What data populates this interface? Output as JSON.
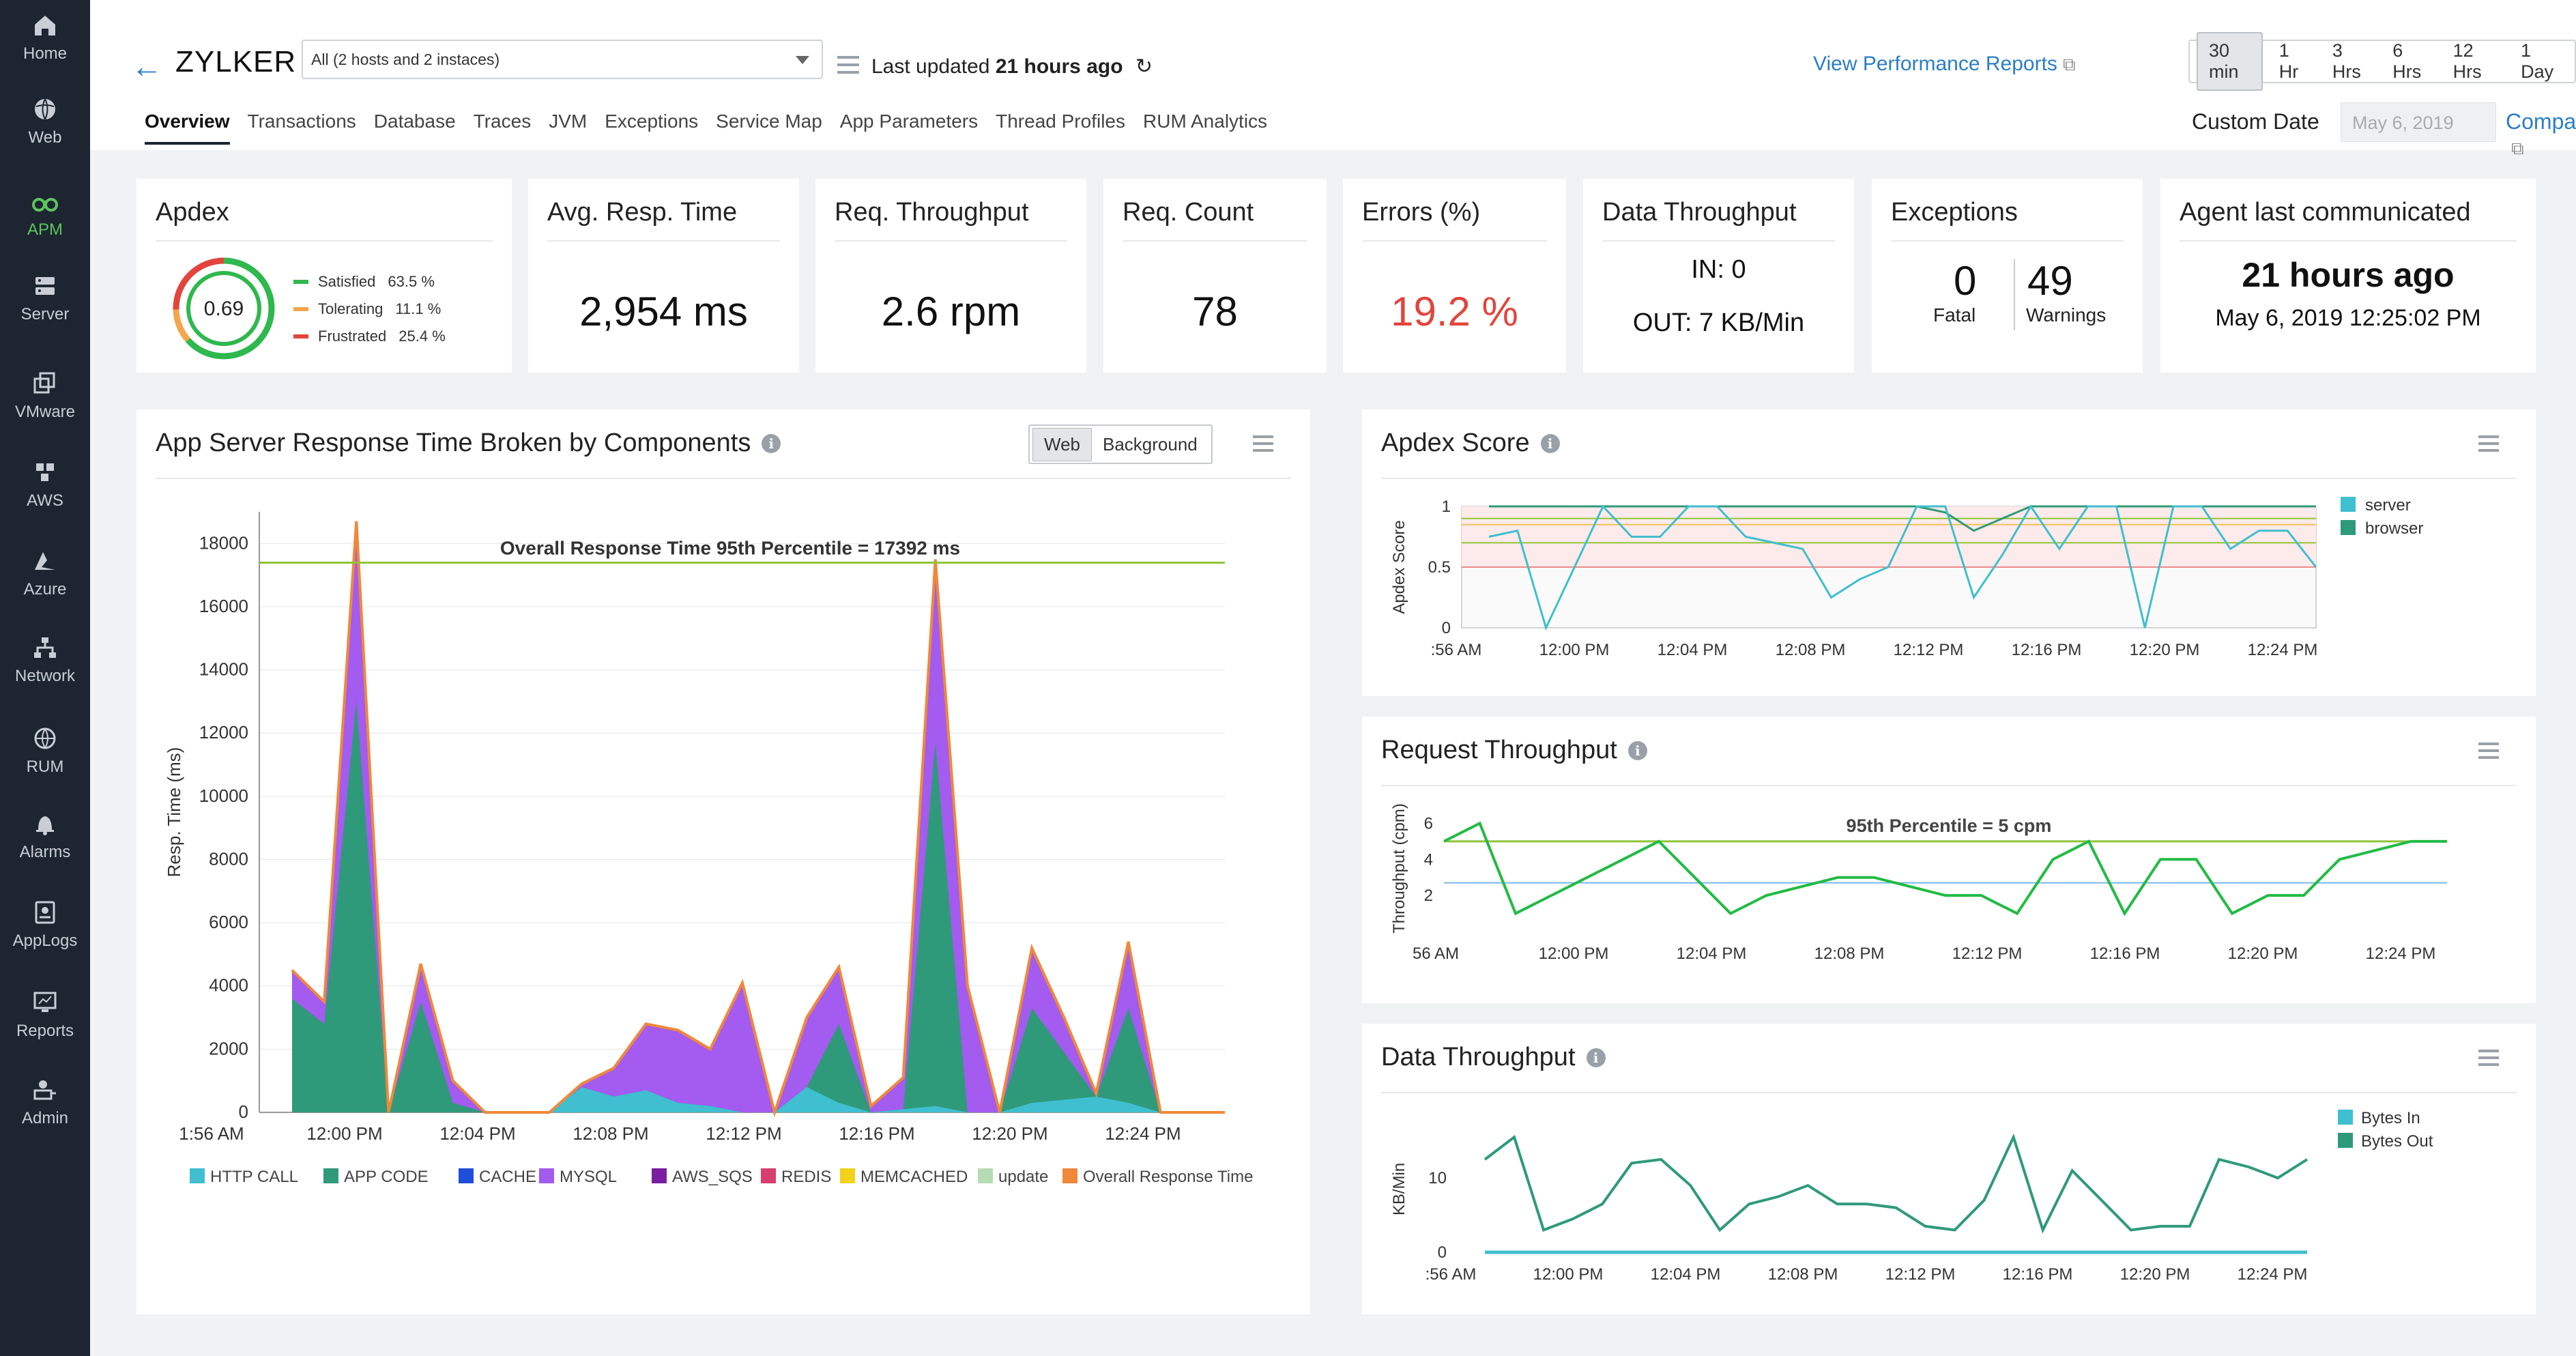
{
  "sidebar": {
    "items": [
      {
        "label": "Home",
        "icon": "home-icon"
      },
      {
        "label": "Web",
        "icon": "globe-icon"
      },
      {
        "label": "APM",
        "icon": "binoculars-icon",
        "active": true
      },
      {
        "label": "Server",
        "icon": "server-icon"
      },
      {
        "label": "VMware",
        "icon": "vmware-icon"
      },
      {
        "label": "AWS",
        "icon": "aws-icon"
      },
      {
        "label": "Azure",
        "icon": "azure-icon"
      },
      {
        "label": "Network",
        "icon": "network-icon"
      },
      {
        "label": "RUM",
        "icon": "rum-globe-icon"
      },
      {
        "label": "Alarms",
        "icon": "bell-icon"
      },
      {
        "label": "AppLogs",
        "icon": "applogs-icon"
      },
      {
        "label": "Reports",
        "icon": "reports-icon"
      },
      {
        "label": "Admin",
        "icon": "admin-icon"
      }
    ]
  },
  "header": {
    "app_name": "ZYLKER",
    "host_select": "All (2 hosts and 2 instaces)",
    "last_updated_prefix": "Last updated",
    "last_updated_value": "21 hours ago",
    "perf_reports": "View Performance Reports",
    "ranges": [
      "30 min",
      "1 Hr",
      "3 Hrs",
      "6 Hrs",
      "12 Hrs",
      "1 Day"
    ],
    "active_range": "30 min",
    "tabs": [
      "Overview",
      "Transactions",
      "Database",
      "Traces",
      "JVM",
      "Exceptions",
      "Service Map",
      "App Parameters",
      "Thread Profiles",
      "RUM Analytics"
    ],
    "active_tab": "Overview",
    "custom_date_label": "Custom Date",
    "custom_date_placeholder": "May 6, 2019",
    "compare": "Compare"
  },
  "metrics": {
    "apdex": {
      "title": "Apdex",
      "score": "0.69",
      "legend": [
        {
          "label": "Satisfied",
          "pct": "63.5 %",
          "color": "#2eb84d"
        },
        {
          "label": "Tolerating",
          "pct": "11.1 %",
          "color": "#f5a54a"
        },
        {
          "label": "Frustrated",
          "pct": "25.4 %",
          "color": "#e3443c"
        }
      ],
      "fractions": [
        0.635,
        0.111,
        0.254
      ]
    },
    "avg_resp": {
      "title": "Avg. Resp. Time",
      "value": "2,954 ms"
    },
    "req_throughput": {
      "title": "Req. Throughput",
      "value": "2.6 rpm"
    },
    "req_count": {
      "title": "Req. Count",
      "value": "78"
    },
    "errors": {
      "title": "Errors (%)",
      "value": "19.2 %"
    },
    "data_throughput": {
      "title": "Data Throughput",
      "in": "IN: 0",
      "out": "OUT: 7 KB/Min"
    },
    "exceptions": {
      "title": "Exceptions",
      "fatal_value": "0",
      "fatal_label": "Fatal",
      "warn_value": "49",
      "warn_label": "Warnings"
    },
    "agent": {
      "title": "Agent last communicated",
      "relative": "21 hours ago",
      "absolute": "May 6, 2019 12:25:02 PM"
    }
  },
  "panels": {
    "resp_components": {
      "title": "App Server Response Time Broken by Components",
      "toggle": [
        "Web",
        "Background"
      ]
    },
    "apdex_score": {
      "title": "Apdex Score"
    },
    "request_throughput": {
      "title": "Request Throughput"
    },
    "data_throughput": {
      "title": "Data Throughput"
    }
  },
  "colors": {
    "accent": "#2a7ec8",
    "sidebar": "#1c2530",
    "error": "#e3443c"
  },
  "chart_data": [
    {
      "type": "area",
      "title": "App Server Response Time Broken by Components",
      "ylabel": "Resp. Time (ms)",
      "ylim": [
        0,
        19000
      ],
      "y_ticks": [
        0,
        2000,
        4000,
        6000,
        8000,
        10000,
        12000,
        14000,
        16000,
        18000
      ],
      "x_ticks": [
        "1:56 AM",
        "12:00 PM",
        "12:04 PM",
        "12:08 PM",
        "12:12 PM",
        "12:16 PM",
        "12:20 PM",
        "12:24 PM"
      ],
      "x_minutes": [
        0,
        1,
        2,
        3,
        4,
        5,
        6,
        7,
        8,
        9,
        10,
        11,
        12,
        13,
        14,
        15,
        16,
        17,
        18,
        19,
        20,
        21,
        22,
        23,
        24,
        25,
        26,
        27,
        28,
        29
      ],
      "annotation": "Overall Response Time 95th Percentile = 17392 ms",
      "percentile": 17392,
      "legend": [
        "HTTP CALL",
        "APP CODE",
        "CACHE",
        "MYSQL",
        "AWS_SQS",
        "REDIS",
        "MEMCACHED",
        "update",
        "Overall Response Time"
      ],
      "legend_colors": [
        "#3fbfcf",
        "#2f9a7a",
        "#1f4fd9",
        "#a35bf0",
        "#7a1fa0",
        "#d63f6f",
        "#f2d21a",
        "#b5dcb5",
        "#f0883a"
      ],
      "series": [
        {
          "name": "HTTP CALL",
          "values": [
            0,
            0,
            0,
            0,
            0,
            0,
            0,
            0,
            0,
            800,
            500,
            700,
            300,
            200,
            0,
            0,
            800,
            300,
            0,
            100,
            200,
            0,
            0,
            300,
            400,
            500,
            300,
            0,
            0,
            0
          ]
        },
        {
          "name": "APP CODE",
          "values": [
            3600,
            2800,
            13000,
            0,
            3500,
            300,
            0,
            0,
            0,
            0,
            0,
            0,
            0,
            0,
            0,
            0,
            0,
            2500,
            0,
            0,
            11500,
            0,
            0,
            3000,
            1500,
            0,
            3000,
            0,
            0,
            0
          ]
        },
        {
          "name": "MYSQL",
          "values": [
            900,
            700,
            3700,
            0,
            1200,
            700,
            0,
            0,
            0,
            100,
            900,
            2100,
            2300,
            1800,
            4100,
            0,
            2100,
            1800,
            200,
            1000,
            6000,
            4000,
            0,
            2100,
            2800,
            100,
            2400,
            0,
            0,
            0
          ]
        },
        {
          "name": "Overall Response Time",
          "values": [
            4500,
            3500,
            18700,
            0,
            4700,
            1000,
            0,
            0,
            0,
            900,
            1400,
            2800,
            2600,
            2000,
            4100,
            0,
            3000,
            4600,
            200,
            1100,
            17500,
            4000,
            0,
            5200,
            3000,
            600,
            5400,
            0,
            0,
            0
          ]
        }
      ]
    },
    {
      "type": "line",
      "title": "Apdex Score",
      "ylabel": "Apdex Score",
      "ylim": [
        0,
        1
      ],
      "y_ticks": [
        0,
        0.5,
        1
      ],
      "x_ticks": [
        ":56 AM",
        "12:00 PM",
        "12:04 PM",
        "12:08 PM",
        "12:12 PM",
        "12:16 PM",
        "12:20 PM",
        "12:24 PM"
      ],
      "series": [
        {
          "name": "server",
          "values": [
            0.75,
            0.8,
            0,
            0.5,
            1,
            0.75,
            0.75,
            1,
            1,
            0.75,
            0.7,
            0.65,
            0.25,
            0.4,
            0.5,
            1,
            1,
            0.25,
            0.6,
            1,
            0.65,
            1,
            1,
            0,
            1,
            1,
            0.65,
            0.8,
            0.8,
            0.5
          ]
        },
        {
          "name": "browser",
          "values": [
            1,
            1,
            1,
            1,
            1,
            1,
            1,
            1,
            1,
            1,
            1,
            1,
            1,
            1,
            1,
            1,
            0.95,
            0.8,
            0.9,
            1,
            1,
            1,
            1,
            1,
            1,
            1,
            1,
            1,
            1,
            1
          ]
        }
      ],
      "legend": [
        "server",
        "browser"
      ],
      "legend_colors": [
        "#3fbfcf",
        "#2f9a7a"
      ]
    },
    {
      "type": "line",
      "title": "Request Throughput",
      "ylabel": "Throughput (cpm)",
      "ylim": [
        0,
        7
      ],
      "y_ticks": [
        2,
        4,
        6
      ],
      "x_ticks": [
        "56 AM",
        "12:00 PM",
        "12:04 PM",
        "12:08 PM",
        "12:12 PM",
        "12:16 PM",
        "12:20 PM",
        "12:24 PM"
      ],
      "annotation": "95th Percentile = 5 cpm",
      "percentile": 5,
      "series": [
        {
          "name": "throughput",
          "values": [
            5,
            6,
            1,
            2,
            3,
            4,
            5,
            3,
            1,
            2,
            2.5,
            3,
            3,
            2.5,
            2,
            2,
            1,
            4,
            5,
            1,
            4,
            4,
            1,
            2,
            2,
            4,
            4.5,
            5,
            5
          ]
        }
      ]
    },
    {
      "type": "line",
      "title": "Data Throughput",
      "ylabel": "KB/Min",
      "ylim": [
        0,
        17
      ],
      "y_ticks": [
        0,
        10
      ],
      "x_ticks": [
        ":56 AM",
        "12:00 PM",
        "12:04 PM",
        "12:08 PM",
        "12:12 PM",
        "12:16 PM",
        "12:20 PM",
        "12:24 PM"
      ],
      "series": [
        {
          "name": "Bytes In",
          "values": [
            0,
            0,
            0,
            0,
            0,
            0,
            0,
            0,
            0,
            0,
            0,
            0,
            0,
            0,
            0,
            0,
            0,
            0,
            0,
            0,
            0,
            0,
            0,
            0,
            0,
            0,
            0,
            0,
            0,
            0
          ]
        },
        {
          "name": "Bytes Out",
          "values": [
            12.5,
            15.5,
            3,
            4.5,
            6.5,
            12,
            12.5,
            9,
            3,
            6.5,
            7.5,
            9,
            6.5,
            6.5,
            6,
            3.5,
            3,
            7,
            15.5,
            3,
            11,
            7,
            3,
            3.5,
            3.5,
            12.5,
            11.5,
            10,
            12.5
          ]
        }
      ],
      "legend": [
        "Bytes In",
        "Bytes Out"
      ],
      "legend_colors": [
        "#3fbfcf",
        "#2f9a7a"
      ]
    }
  ]
}
